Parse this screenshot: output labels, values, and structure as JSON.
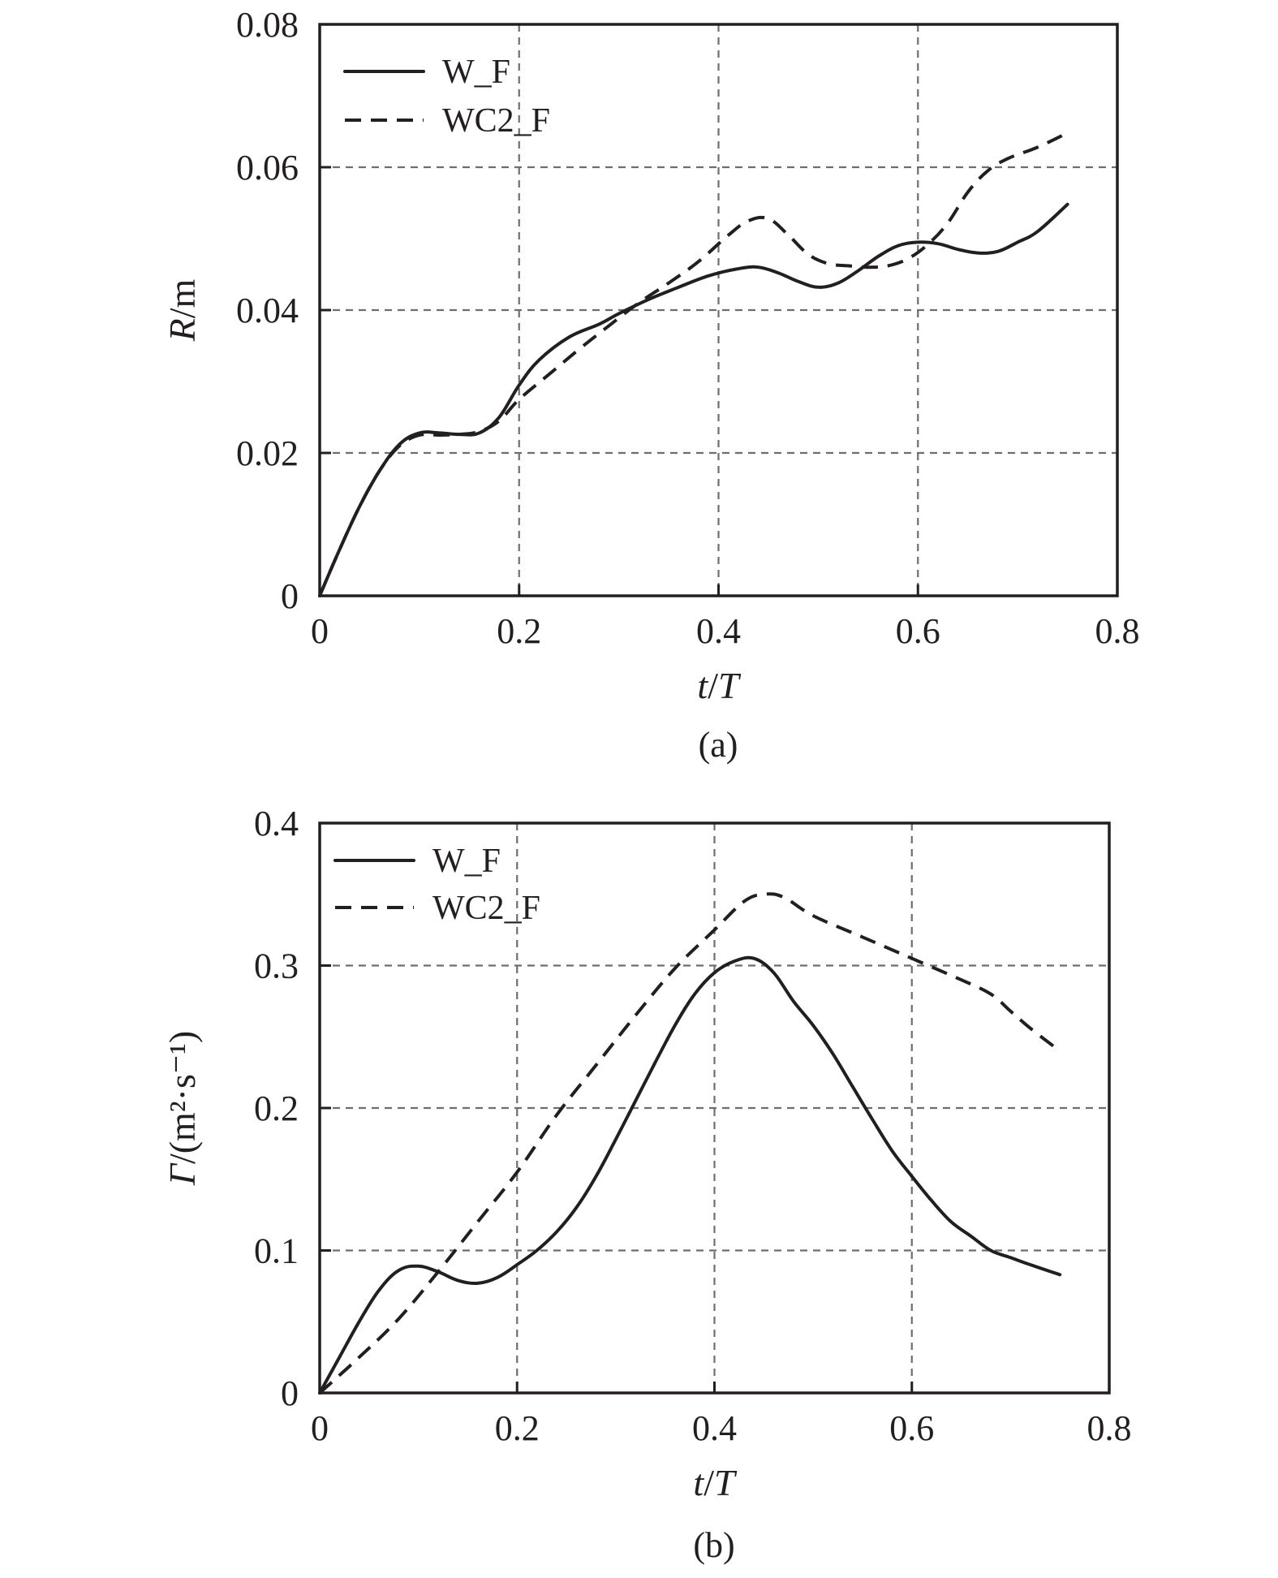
{
  "chart_data": [
    {
      "type": "line",
      "panel_label": "(a)",
      "xlabel": {
        "italic": "t",
        "slash": "/",
        "italic2": "T",
        "suffix": ""
      },
      "ylabel": {
        "italic": "R",
        "rest": "/m"
      },
      "xlim": [
        0,
        0.8
      ],
      "ylim": [
        0,
        0.08
      ],
      "x_ticks": [
        0,
        0.2,
        0.4,
        0.6,
        0.8
      ],
      "x_tick_labels": [
        "0",
        "0.2",
        "0.4",
        "0.6",
        "0.8"
      ],
      "y_ticks": [
        0,
        0.02,
        0.04,
        0.06,
        0.08
      ],
      "y_tick_labels": [
        "0",
        "0.02",
        "0.04",
        "0.06",
        "0.08"
      ],
      "grid": true,
      "legend_position": "top-left",
      "series": [
        {
          "name": "W_F",
          "style": "solid",
          "x": [
            0,
            0.02,
            0.04,
            0.06,
            0.08,
            0.1,
            0.12,
            0.14,
            0.16,
            0.18,
            0.2,
            0.22,
            0.25,
            0.28,
            0.3,
            0.33,
            0.36,
            0.39,
            0.42,
            0.44,
            0.46,
            0.48,
            0.5,
            0.52,
            0.54,
            0.56,
            0.58,
            0.6,
            0.62,
            0.64,
            0.66,
            0.68,
            0.7,
            0.72,
            0.75
          ],
          "y": [
            0,
            0.0065,
            0.0125,
            0.0175,
            0.0212,
            0.0228,
            0.0228,
            0.0226,
            0.0228,
            0.025,
            0.0295,
            0.033,
            0.0362,
            0.038,
            0.0395,
            0.0415,
            0.0432,
            0.0448,
            0.0458,
            0.046,
            0.0452,
            0.044,
            0.0432,
            0.0438,
            0.0455,
            0.0475,
            0.049,
            0.0495,
            0.0493,
            0.0485,
            0.048,
            0.0482,
            0.0495,
            0.051,
            0.0548
          ]
        },
        {
          "name": "WC2_F",
          "style": "dashed",
          "x": [
            0,
            0.02,
            0.04,
            0.06,
            0.08,
            0.1,
            0.12,
            0.14,
            0.16,
            0.18,
            0.2,
            0.23,
            0.26,
            0.29,
            0.32,
            0.35,
            0.38,
            0.41,
            0.43,
            0.45,
            0.47,
            0.49,
            0.51,
            0.53,
            0.55,
            0.57,
            0.59,
            0.61,
            0.63,
            0.65,
            0.67,
            0.69,
            0.72,
            0.75
          ],
          "y": [
            0,
            0.0065,
            0.0125,
            0.0175,
            0.021,
            0.0225,
            0.0225,
            0.0226,
            0.023,
            0.0245,
            0.0275,
            0.031,
            0.0345,
            0.0378,
            0.041,
            0.0438,
            0.0468,
            0.0505,
            0.0525,
            0.0528,
            0.0505,
            0.0478,
            0.0465,
            0.0462,
            0.046,
            0.0462,
            0.0472,
            0.0492,
            0.0522,
            0.0565,
            0.0595,
            0.0612,
            0.0628,
            0.0648
          ]
        }
      ]
    },
    {
      "type": "line",
      "panel_label": "(b)",
      "xlabel": {
        "italic": "t",
        "slash": "/",
        "italic2": "T",
        "suffix": ""
      },
      "ylabel": {
        "italic": "Γ",
        "rest": "/(m²·s⁻¹)"
      },
      "xlim": [
        0,
        0.8
      ],
      "ylim": [
        0,
        0.4
      ],
      "x_ticks": [
        0,
        0.2,
        0.4,
        0.6,
        0.8
      ],
      "x_tick_labels": [
        "0",
        "0.2",
        "0.4",
        "0.6",
        "0.8"
      ],
      "y_ticks": [
        0,
        0.1,
        0.2,
        0.3,
        0.4
      ],
      "y_tick_labels": [
        "0",
        "0.1",
        "0.2",
        "0.3",
        "0.4"
      ],
      "grid": true,
      "legend_position": "top-left",
      "series": [
        {
          "name": "W_F",
          "style": "solid",
          "x": [
            0,
            0.02,
            0.04,
            0.06,
            0.08,
            0.1,
            0.12,
            0.14,
            0.16,
            0.18,
            0.2,
            0.22,
            0.24,
            0.26,
            0.28,
            0.3,
            0.32,
            0.34,
            0.36,
            0.38,
            0.4,
            0.42,
            0.44,
            0.46,
            0.48,
            0.5,
            0.52,
            0.54,
            0.56,
            0.58,
            0.6,
            0.62,
            0.64,
            0.66,
            0.68,
            0.7,
            0.72,
            0.75
          ],
          "y": [
            0,
            0.025,
            0.05,
            0.072,
            0.086,
            0.089,
            0.085,
            0.079,
            0.077,
            0.081,
            0.09,
            0.1,
            0.113,
            0.13,
            0.152,
            0.178,
            0.205,
            0.232,
            0.258,
            0.28,
            0.295,
            0.303,
            0.305,
            0.295,
            0.275,
            0.258,
            0.238,
            0.215,
            0.192,
            0.17,
            0.152,
            0.135,
            0.12,
            0.11,
            0.1,
            0.095,
            0.09,
            0.083
          ]
        },
        {
          "name": "WC2_F",
          "style": "dashed",
          "x": [
            0,
            0.04,
            0.08,
            0.12,
            0.16,
            0.2,
            0.24,
            0.28,
            0.32,
            0.36,
            0.4,
            0.43,
            0.45,
            0.47,
            0.5,
            0.55,
            0.6,
            0.65,
            0.68,
            0.7,
            0.72,
            0.75
          ],
          "y": [
            0,
            0.025,
            0.052,
            0.085,
            0.12,
            0.155,
            0.195,
            0.23,
            0.265,
            0.298,
            0.325,
            0.345,
            0.35,
            0.348,
            0.335,
            0.32,
            0.305,
            0.29,
            0.28,
            0.268,
            0.256,
            0.24
          ]
        }
      ]
    }
  ]
}
